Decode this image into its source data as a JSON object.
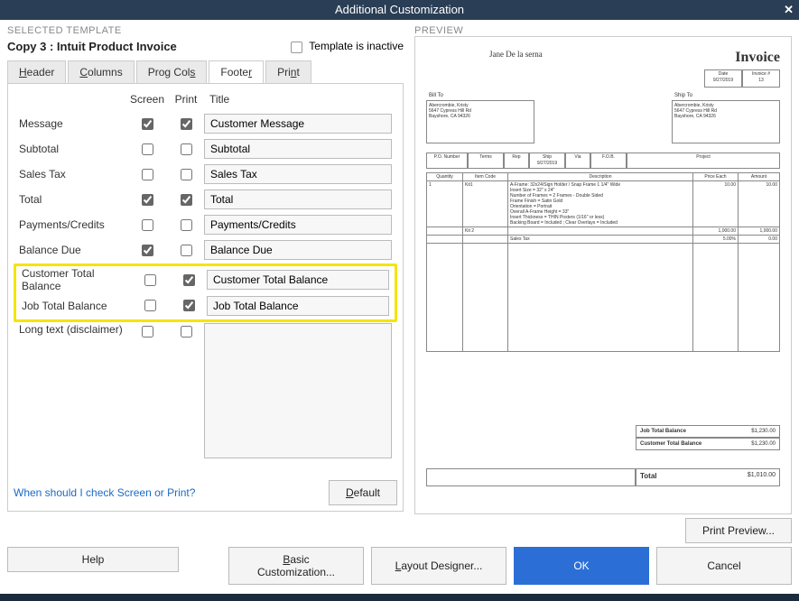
{
  "window": {
    "title": "Additional Customization"
  },
  "section_labels": {
    "selected_template": "SELECTED TEMPLATE",
    "preview": "PREVIEW",
    "template_inactive": "Template is inactive"
  },
  "template": {
    "name": "Copy 3 : Intuit Product Invoice",
    "inactive": false
  },
  "tabs": {
    "header": "Header",
    "columns": "Columns",
    "prog_cols": "Prog Cols",
    "footer": "Footer",
    "print": "Print",
    "active": "footer"
  },
  "columns": {
    "screen": "Screen",
    "print": "Print",
    "title": "Title"
  },
  "rows": [
    {
      "key": "message",
      "label": "Message",
      "screen": true,
      "print": true,
      "title": "Customer Message"
    },
    {
      "key": "subtotal",
      "label": "Subtotal",
      "screen": false,
      "print": false,
      "title": "Subtotal"
    },
    {
      "key": "sales_tax",
      "label": "Sales Tax",
      "screen": false,
      "print": false,
      "title": "Sales Tax"
    },
    {
      "key": "total",
      "label": "Total",
      "screen": true,
      "print": true,
      "title": "Total"
    },
    {
      "key": "payments_credits",
      "label": "Payments/Credits",
      "screen": false,
      "print": false,
      "title": "Payments/Credits"
    },
    {
      "key": "balance_due",
      "label": "Balance Due",
      "screen": true,
      "print": false,
      "title": "Balance Due"
    },
    {
      "key": "customer_total_balance",
      "label": "Customer Total Balance",
      "screen": false,
      "print": true,
      "title": "Customer Total Balance",
      "highlight": true
    },
    {
      "key": "job_total_balance",
      "label": "Job Total Balance",
      "screen": false,
      "print": true,
      "title": "Job Total Balance",
      "highlight": true
    },
    {
      "key": "long_text",
      "label": "Long text (disclaimer)",
      "screen": false,
      "print": false,
      "title": "",
      "long": true
    }
  ],
  "link_text": "When should I check Screen or Print?",
  "buttons": {
    "default": "Default",
    "help": "Help",
    "basic_customization": "Basic Customization...",
    "layout_designer": "Layout Designer...",
    "ok": "OK",
    "cancel": "Cancel",
    "print_preview": "Print Preview..."
  },
  "preview": {
    "company": "Jane De la serna",
    "title": "Invoice",
    "date_hdr": "Date",
    "invoice_hdr": "Invoice #",
    "date": "9/27/2019",
    "invoice_no": "13",
    "bill_to_label": "Bill To",
    "ship_to_label": "Ship To",
    "bill_to": "Abercrombie, Kristy\n5647 Cypress Hill Rd\nBayshore, CA 94326",
    "ship_to": "Abercrombie, Kristy\n5647 Cypress Hill Rd\nBayshore, CA 94326",
    "po_headers": [
      "P.O. Number",
      "Terms",
      "Rep",
      "Ship",
      "Via",
      "F.O.B.",
      "Project"
    ],
    "po_values": [
      "",
      "",
      "",
      "9/27/2019",
      "",
      "",
      ""
    ],
    "line_headers": [
      "Quantity",
      "Item Code",
      "Description",
      "Price Each",
      "Amount"
    ],
    "lines": [
      {
        "qty": "1",
        "code": "Kit1",
        "desc": "A-Frame: 32x24/Sign Holder / Snap Frame 1 1/4\" Wide\nInsert Size = 32\" x 24\"\nNumber of Frames = 2 Frames - Double Sided\nFrame Finish = Satin Gold\nOrientation = Portrait\nOverall A-Frame Height = 33\"\nInsert Thickness = THIN Posters (1/16\" or less)\nBacking Board = Included ; Clear Overlays = Included",
        "price": "10.00",
        "amount": "10.00"
      },
      {
        "qty": "",
        "code": "Kit 2",
        "desc": "",
        "price": "1,000.00",
        "amount": "1,000.00"
      },
      {
        "qty": "",
        "code": "",
        "desc": "Sales Tax",
        "price": "5.00%",
        "amount": "0.00"
      }
    ],
    "job_total_balance_label": "Job Total Balance",
    "job_total_balance": "$1,230.00",
    "customer_total_balance_label": "Customer Total Balance",
    "customer_total_balance": "$1,230.00",
    "total_label": "Total",
    "total": "$1,010.00"
  },
  "styling": {
    "titlebar_bg": "#2a3e55",
    "highlight_border": "#f5e400",
    "primary_btn_bg": "#2b6fd6",
    "link_color": "#1a6bc7"
  }
}
